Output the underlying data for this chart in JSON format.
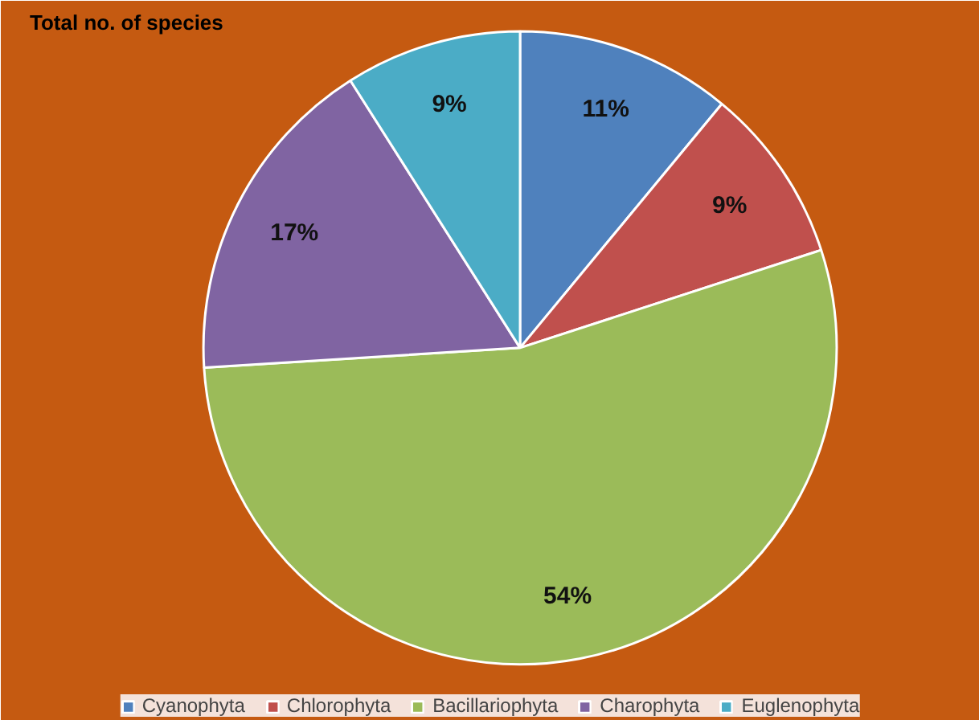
{
  "chart_data": {
    "type": "pie",
    "title": "Total no. of species",
    "categories": [
      "Cyanophyta",
      "Chlorophyta",
      "Bacillariophyta",
      "Charophyta",
      "Euglenophyta"
    ],
    "values": [
      11,
      9,
      54,
      17,
      9
    ],
    "value_labels": [
      "11%",
      "9%",
      "54%",
      "17%",
      "9%"
    ],
    "colors": [
      "#4f81bd",
      "#c0504d",
      "#9bbb59",
      "#8064a2",
      "#4bacc6"
    ],
    "legend": "bottom"
  }
}
